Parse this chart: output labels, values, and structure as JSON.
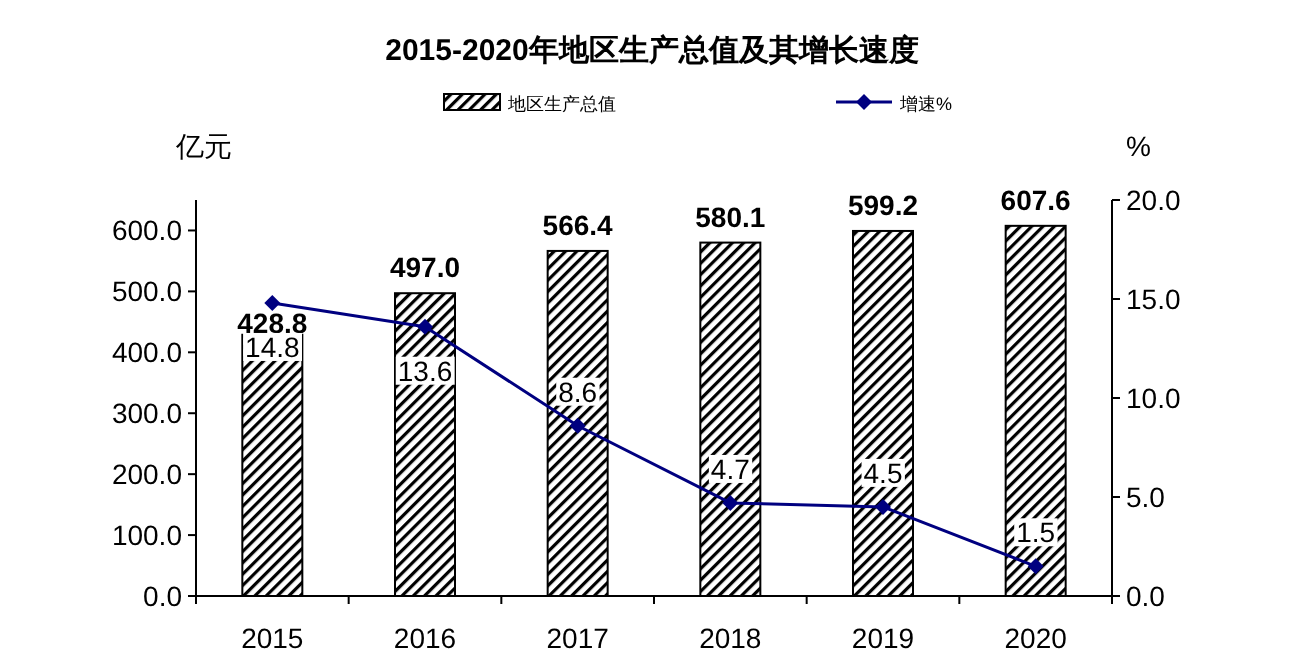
{
  "chart_data": {
    "type": "bar",
    "title": "2015-2020年地区生产总值及其增长速度",
    "ylabel": "亿元",
    "y2label": "%",
    "categories": [
      "2015",
      "2016",
      "2017",
      "2018",
      "2019",
      "2020"
    ],
    "series": [
      {
        "name": "地区生产总值",
        "type": "bar",
        "color": "#000000",
        "values": [
          428.8,
          497.0,
          566.4,
          580.1,
          599.2,
          607.6
        ],
        "value_labels": [
          "428.8",
          "497.0",
          "566.4",
          "580.1",
          "599.2",
          "607.6"
        ]
      },
      {
        "name": "增速%",
        "type": "line",
        "axis": "y2",
        "color": "#000080",
        "marker": "diamond",
        "values": [
          14.8,
          13.6,
          8.6,
          4.7,
          4.5,
          1.5
        ],
        "value_labels": [
          "14.8",
          "13.6",
          "8.6",
          "4.7",
          "4.5",
          "1.5"
        ]
      }
    ],
    "ylim": [
      0,
      650
    ],
    "yticks": [
      {
        "value": 0,
        "label": "0.0"
      },
      {
        "value": 100,
        "label": "100.0"
      },
      {
        "value": 200,
        "label": "200.0"
      },
      {
        "value": 300,
        "label": "300.0"
      },
      {
        "value": 400,
        "label": "400.0"
      },
      {
        "value": 500,
        "label": "500.0"
      },
      {
        "value": 600,
        "label": "600.0"
      }
    ],
    "y2lim": [
      0,
      20
    ],
    "y2ticks": [
      {
        "value": 0,
        "label": "0.0"
      },
      {
        "value": 5,
        "label": "5.0"
      },
      {
        "value": 10,
        "label": "10.0"
      },
      {
        "value": 15,
        "label": "15.0"
      },
      {
        "value": 20,
        "label": "20.0"
      }
    ],
    "legend": "top",
    "grid": false
  }
}
